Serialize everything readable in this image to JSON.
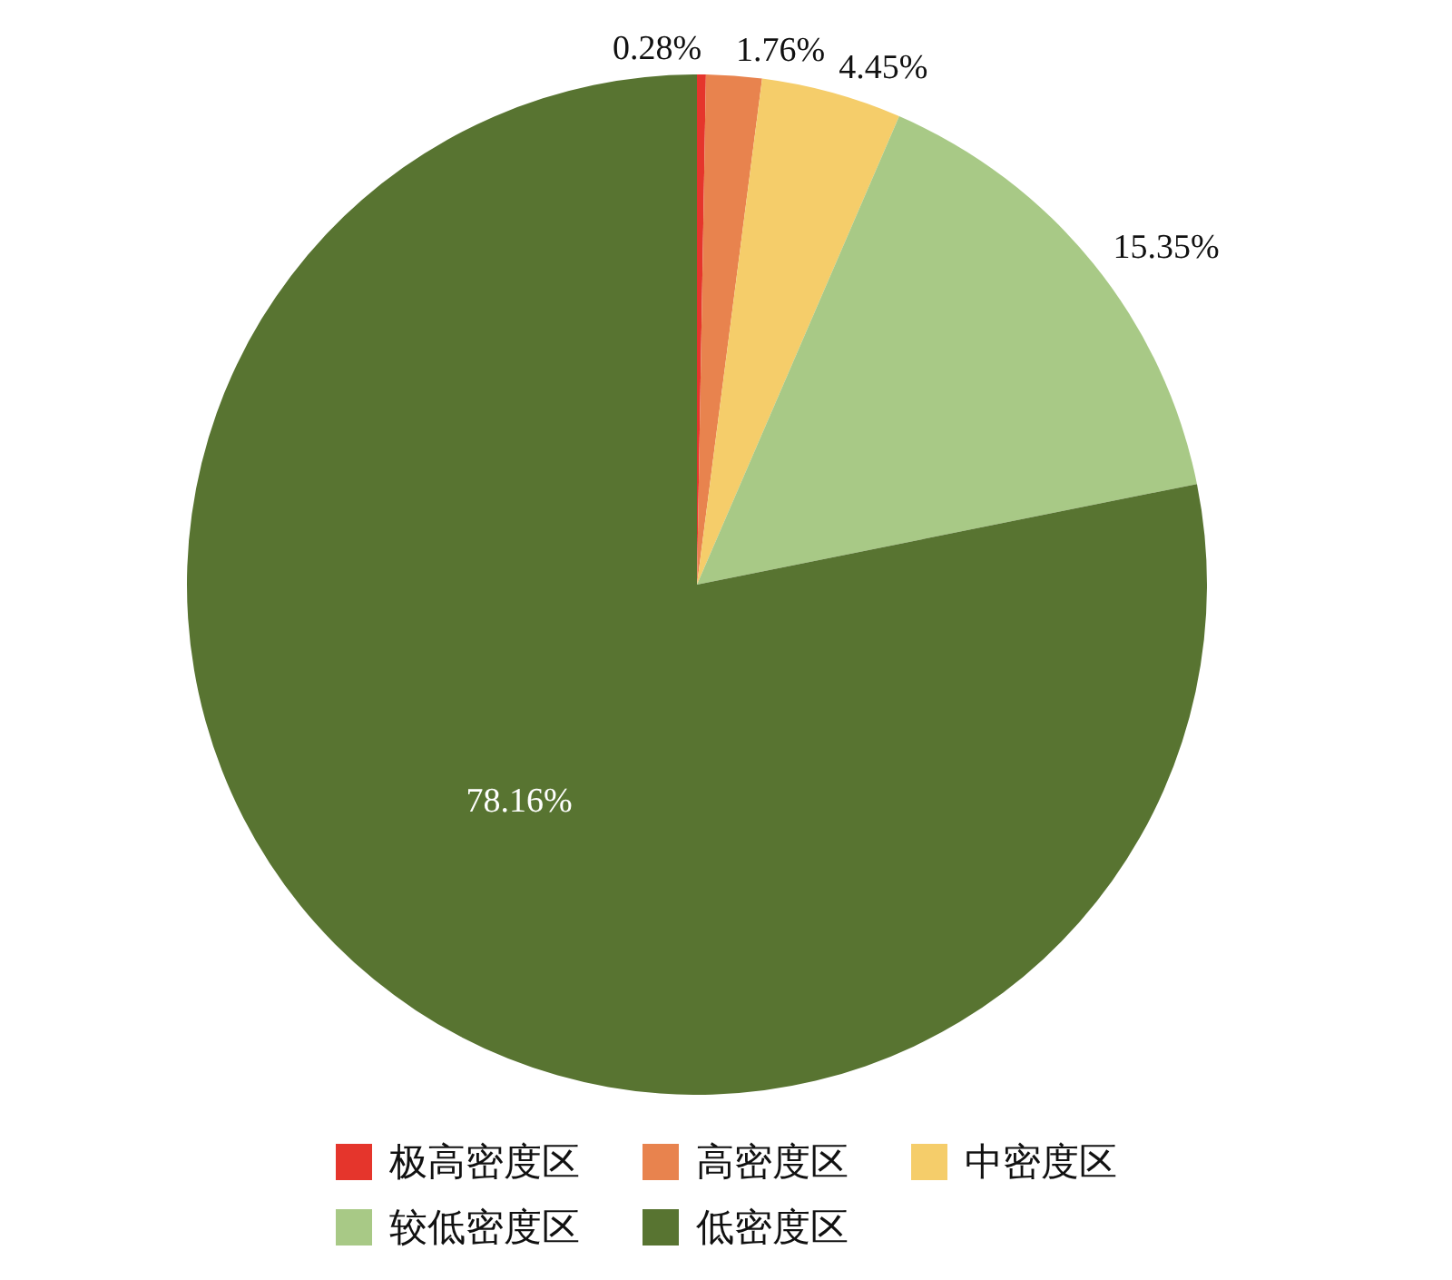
{
  "chart_data": {
    "type": "pie",
    "categories": [
      "极高密度区",
      "高密度区",
      "中密度区",
      "较低密度区",
      "低密度区"
    ],
    "values": [
      0.28,
      1.76,
      4.45,
      15.35,
      78.16
    ],
    "colors": [
      "#e5352c",
      "#e8834e",
      "#f5cd6a",
      "#a8c986",
      "#587431"
    ],
    "value_labels": [
      "0.28%",
      "1.76%",
      "4.45%",
      "15.35%",
      "78.16%"
    ],
    "legend": "bottom"
  }
}
